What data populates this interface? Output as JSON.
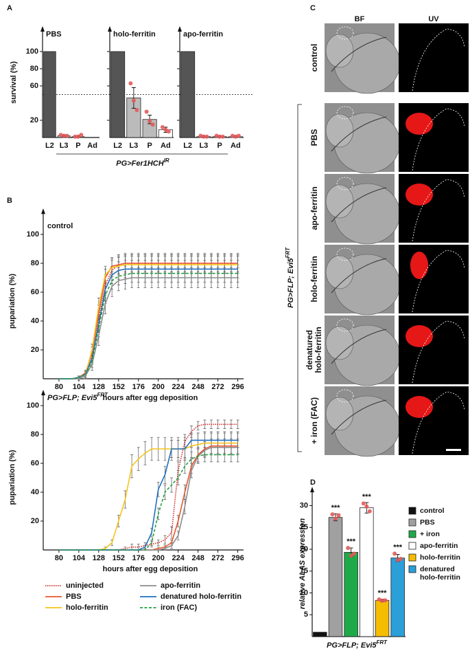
{
  "panel_labels": [
    "A",
    "B",
    "C",
    "D"
  ],
  "panel_a": {
    "genotype": "PG>Fer1HCH",
    "genotype_sup": "IR"
  },
  "panel_c": {
    "columns": [
      "BF",
      "UV"
    ],
    "rows": [
      "control",
      "PBS",
      "apo-ferritin",
      "holo-ferritin",
      "denatured holo-ferritin",
      "+ iron (FAC)"
    ],
    "genotype": "PG>FLP; Evi5",
    "genotype_sup": "FRT"
  },
  "chart_data": [
    {
      "type": "bar",
      "title": "PBS",
      "ylabel": "survival (%)",
      "categories": [
        "L2",
        "L3",
        "P",
        "Ad"
      ],
      "values": [
        100,
        2,
        1,
        0
      ],
      "errors": [
        0,
        1,
        1,
        0
      ],
      "points": [
        null,
        [
          3,
          2,
          2
        ],
        [
          1,
          1,
          3
        ],
        null
      ],
      "colors": [
        "#555555",
        "#bbbbbb",
        "#bbbbbb",
        "#ffffff"
      ],
      "hline": 50,
      "ylim": [
        0,
        128
      ],
      "yticks": [
        20,
        60,
        80,
        100
      ]
    },
    {
      "type": "bar",
      "title": "holo-ferritin",
      "categories": [
        "L2",
        "L3",
        "P",
        "Ad"
      ],
      "values": [
        100,
        46,
        21,
        9
      ],
      "errors": [
        0,
        12,
        5,
        3
      ],
      "points": [
        null,
        [
          63,
          43,
          32
        ],
        [
          30,
          19,
          15
        ],
        [
          12,
          9,
          7
        ]
      ],
      "colors": [
        "#555555",
        "#bbbbbb",
        "#bbbbbb",
        "#ffffff"
      ],
      "hline": 50,
      "ylim": [
        0,
        128
      ],
      "yticks": [
        20,
        60,
        80,
        100
      ]
    },
    {
      "type": "bar",
      "title": "apo-ferritin",
      "categories": [
        "L2",
        "L3",
        "P",
        "Ad"
      ],
      "values": [
        100,
        1,
        1,
        1
      ],
      "errors": [
        0,
        1,
        1,
        1
      ],
      "points": [
        null,
        [
          2,
          1,
          1
        ],
        [
          2,
          1,
          1
        ],
        [
          2,
          1,
          2
        ]
      ],
      "colors": [
        "#555555",
        "#bbbbbb",
        "#bbbbbb",
        "#ffffff"
      ],
      "hline": 50,
      "ylim": [
        0,
        128
      ],
      "yticks": [
        20,
        60,
        80,
        100
      ]
    },
    {
      "type": "line",
      "title": "control",
      "xlabel": "hours after egg deposition",
      "ylabel": "pupariation (%)",
      "x": [
        80,
        88,
        96,
        104,
        112,
        120,
        128,
        136,
        144,
        152,
        160,
        168,
        176,
        184,
        192,
        200,
        208,
        216,
        224,
        232,
        240,
        248,
        256,
        264,
        272,
        280,
        288,
        296
      ],
      "xlim": [
        61,
        303
      ],
      "xticks": [
        80,
        104,
        128,
        152,
        176,
        200,
        224,
        248,
        272,
        296
      ],
      "ylim": [
        0,
        117
      ],
      "yticks": [
        20,
        40,
        60,
        80,
        100
      ],
      "series": [
        {
          "color": "#d62728",
          "dash": "dotted",
          "values": [
            0,
            0,
            0,
            1,
            3,
            15,
            40,
            65,
            75,
            79,
            80,
            80,
            80,
            80,
            80,
            80,
            80,
            80,
            80,
            80,
            80,
            80,
            80,
            80,
            80,
            80,
            80,
            80
          ],
          "errors": [
            0,
            0,
            0,
            1,
            2,
            4,
            6,
            7,
            7,
            7,
            7,
            7,
            7,
            7,
            7,
            7,
            7,
            7,
            7,
            7,
            7,
            7,
            7,
            7,
            7,
            7,
            7,
            7
          ]
        },
        {
          "color": "#e8552f",
          "dash": "solid",
          "values": [
            0,
            0,
            0,
            1,
            4,
            18,
            45,
            70,
            78,
            79,
            80,
            80,
            80,
            80,
            80,
            80,
            80,
            80,
            80,
            80,
            80,
            80,
            80,
            80,
            80,
            80,
            80,
            80
          ],
          "errors": [
            0,
            0,
            0,
            1,
            2,
            4,
            6,
            6,
            6,
            6,
            6,
            6,
            6,
            6,
            6,
            6,
            6,
            6,
            6,
            6,
            6,
            6,
            6,
            6,
            6,
            6,
            6,
            6
          ]
        },
        {
          "color": "#f5c518",
          "dash": "solid",
          "values": [
            0,
            0,
            0,
            1,
            3,
            20,
            50,
            72,
            77,
            78,
            79,
            79,
            79,
            79,
            79,
            79,
            79,
            79,
            79,
            79,
            79,
            79,
            79,
            79,
            79,
            79,
            79,
            79
          ],
          "errors": [
            0,
            0,
            0,
            1,
            2,
            4,
            6,
            6,
            6,
            6,
            6,
            6,
            6,
            6,
            6,
            6,
            6,
            6,
            6,
            6,
            6,
            6,
            6,
            6,
            6,
            6,
            6,
            6
          ]
        },
        {
          "color": "#8c8c8c",
          "dash": "solid",
          "values": [
            0,
            0,
            0,
            0,
            2,
            10,
            30,
            52,
            64,
            68,
            69,
            70,
            70,
            70,
            70,
            70,
            70,
            70,
            70,
            70,
            70,
            70,
            70,
            70,
            70,
            70,
            70,
            70
          ],
          "errors": [
            0,
            0,
            0,
            1,
            2,
            4,
            7,
            7,
            7,
            7,
            7,
            7,
            7,
            7,
            7,
            7,
            7,
            7,
            7,
            7,
            7,
            7,
            7,
            7,
            7,
            7,
            7,
            7
          ]
        },
        {
          "color": "#1f6fbf",
          "dash": "solid",
          "values": [
            0,
            0,
            0,
            1,
            3,
            14,
            38,
            62,
            72,
            75,
            76,
            76,
            76,
            76,
            76,
            76,
            76,
            76,
            76,
            76,
            76,
            76,
            76,
            76,
            76,
            76,
            76,
            76
          ],
          "errors": [
            0,
            0,
            0,
            1,
            2,
            4,
            6,
            6,
            6,
            6,
            6,
            6,
            6,
            6,
            6,
            6,
            6,
            6,
            6,
            6,
            6,
            6,
            6,
            6,
            6,
            6,
            6,
            6
          ]
        },
        {
          "color": "#22a03c",
          "dash": "dashed",
          "values": [
            0,
            0,
            0,
            1,
            3,
            12,
            35,
            58,
            68,
            71,
            72,
            73,
            73,
            73,
            73,
            73,
            73,
            73,
            73,
            73,
            73,
            73,
            73,
            73,
            73,
            73,
            73,
            73
          ],
          "errors": [
            0,
            0,
            0,
            1,
            2,
            4,
            6,
            6,
            6,
            6,
            6,
            6,
            6,
            6,
            6,
            6,
            6,
            6,
            6,
            6,
            6,
            6,
            6,
            6,
            6,
            6,
            6,
            6
          ]
        }
      ]
    },
    {
      "type": "line",
      "title": "PG>FLP; Evi5",
      "title_sup": "FRT",
      "xlabel": "hours after egg deposition",
      "ylabel": "pupariation (%)",
      "x": [
        80,
        88,
        96,
        104,
        112,
        120,
        128,
        136,
        144,
        152,
        160,
        168,
        176,
        184,
        192,
        200,
        208,
        216,
        224,
        232,
        240,
        248,
        256,
        264,
        272,
        280,
        288,
        296
      ],
      "xlim": [
        61,
        303
      ],
      "xticks": [
        80,
        104,
        128,
        152,
        176,
        200,
        224,
        248,
        272,
        296
      ],
      "ylim": [
        0,
        110
      ],
      "yticks": [
        20,
        40,
        60,
        80,
        100
      ],
      "legend": "below",
      "series": [
        {
          "name": "uninjected",
          "color": "#d62728",
          "dash": "dotted",
          "values": [
            0,
            0,
            0,
            0,
            0,
            0,
            0,
            0,
            0,
            0,
            1,
            2,
            2,
            3,
            4,
            5,
            7,
            12,
            55,
            75,
            82,
            86,
            87,
            87,
            87,
            87,
            87,
            87
          ],
          "errors": [
            0,
            0,
            0,
            0,
            0,
            0,
            0,
            0,
            0,
            0,
            1,
            2,
            2,
            2,
            2,
            2,
            3,
            4,
            6,
            5,
            4,
            3,
            3,
            3,
            3,
            3,
            3,
            3
          ]
        },
        {
          "name": "PBS",
          "color": "#e8552f",
          "dash": "solid",
          "values": [
            0,
            0,
            0,
            0,
            0,
            0,
            0,
            0,
            0,
            0,
            0,
            0,
            0,
            0,
            0,
            1,
            2,
            5,
            20,
            40,
            58,
            66,
            70,
            72,
            72,
            72,
            72,
            72
          ],
          "errors": [
            0,
            0,
            0,
            0,
            0,
            0,
            0,
            0,
            0,
            0,
            0,
            0,
            0,
            0,
            0,
            1,
            1,
            2,
            4,
            5,
            5,
            5,
            5,
            5,
            5,
            5,
            5,
            5
          ]
        },
        {
          "name": "holo-ferritin",
          "color": "#f5c518",
          "dash": "solid",
          "values": [
            0,
            0,
            0,
            0,
            0,
            0,
            0,
            1,
            5,
            20,
            35,
            58,
            63,
            67,
            70,
            70,
            70,
            70,
            70,
            70,
            72,
            73,
            74,
            74,
            74,
            74,
            74,
            74
          ],
          "errors": [
            0,
            0,
            0,
            0,
            0,
            0,
            0,
            1,
            2,
            4,
            6,
            8,
            8,
            8,
            8,
            8,
            8,
            8,
            8,
            8,
            8,
            8,
            8,
            8,
            8,
            8,
            8,
            8
          ]
        },
        {
          "name": "apo-ferritin",
          "color": "#8c8c8c",
          "dash": "solid",
          "values": [
            0,
            0,
            0,
            0,
            0,
            0,
            0,
            0,
            0,
            0,
            0,
            0,
            0,
            0,
            0,
            0,
            1,
            3,
            10,
            30,
            55,
            65,
            69,
            71,
            71,
            71,
            71,
            71
          ],
          "errors": [
            0,
            0,
            0,
            0,
            0,
            0,
            0,
            0,
            0,
            0,
            0,
            0,
            0,
            0,
            0,
            0,
            1,
            2,
            3,
            5,
            5,
            5,
            5,
            5,
            5,
            5,
            5,
            5
          ]
        },
        {
          "name": "denatured holo-ferritin",
          "color": "#1f6fbf",
          "dash": "solid",
          "values": [
            0,
            0,
            0,
            0,
            0,
            0,
            0,
            0,
            0,
            0,
            0,
            0,
            0,
            2,
            12,
            42,
            52,
            70,
            70,
            70,
            76,
            76,
            76,
            76,
            76,
            76,
            76,
            76
          ],
          "errors": [
            0,
            0,
            0,
            0,
            0,
            0,
            0,
            0,
            0,
            0,
            0,
            0,
            0,
            1,
            3,
            5,
            6,
            6,
            6,
            6,
            5,
            5,
            5,
            5,
            5,
            5,
            5,
            5
          ]
        },
        {
          "name": "iron (FAC)",
          "color": "#22a03c",
          "dash": "dashed",
          "values": [
            0,
            0,
            0,
            0,
            0,
            0,
            0,
            0,
            0,
            0,
            0,
            0,
            0,
            0,
            5,
            25,
            40,
            45,
            50,
            58,
            63,
            65,
            66,
            66,
            66,
            66,
            66,
            66
          ],
          "errors": [
            0,
            0,
            0,
            0,
            0,
            0,
            0,
            0,
            0,
            0,
            0,
            0,
            0,
            0,
            2,
            4,
            5,
            5,
            5,
            5,
            5,
            5,
            5,
            5,
            5,
            5,
            5,
            5
          ]
        }
      ]
    },
    {
      "type": "bar",
      "ylabel": "relative ALAS expression",
      "genotype": "PG>FLP; Evi5",
      "genotype_sup": "FRT",
      "categories": [
        "control",
        "PBS",
        "+ iron",
        "apo-ferritin",
        "holo-ferritin",
        "denatured holo-ferritin"
      ],
      "values": [
        1,
        27.3,
        19.3,
        29.5,
        8.3,
        18
      ],
      "errors": [
        0,
        0.8,
        1,
        1.2,
        0.3,
        0.8
      ],
      "points": [
        null,
        [
          28,
          27,
          27.8
        ],
        [
          20.3,
          18.5,
          19
        ],
        [
          30.5,
          29.8,
          28.7
        ],
        [
          8.5,
          8.2,
          8.3
        ],
        [
          19,
          17.5,
          17.8
        ]
      ],
      "annotations": [
        null,
        "***",
        "***",
        "***",
        "***",
        "***"
      ],
      "colors": [
        "#111111",
        "#a0a0a0",
        "#1faa4a",
        "#ffffff",
        "#f5bd00",
        "#2a9fd8"
      ],
      "legend": "right",
      "ylim": [
        0,
        34
      ],
      "yticks": [
        5,
        10,
        15,
        20,
        25,
        30
      ]
    }
  ]
}
